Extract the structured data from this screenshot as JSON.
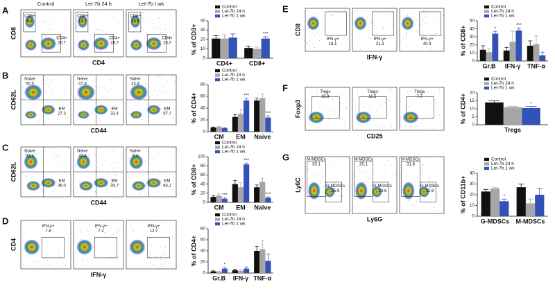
{
  "column_headers": [
    "Control",
    "Let-7b 24 h",
    "Let-7b I wk"
  ],
  "flow_panels": [
    {
      "label": "A",
      "y_label": "CD8",
      "x_label": "CD4",
      "plots": [
        {
          "gates": [
            {
              "name": "CD8+",
              "value": "9.1"
            },
            {
              "name": "CD4+",
              "value": "20.7"
            }
          ]
        },
        {
          "gates": [
            {
              "name": "CD8+",
              "value": "12.7"
            },
            {
              "name": "CD4+",
              "value": "28.7"
            }
          ]
        },
        {
          "gates": [
            {
              "name": "CD8+",
              "value": "20.6"
            },
            {
              "name": "CD4+",
              "value": "25.7"
            }
          ]
        }
      ]
    },
    {
      "label": "B",
      "y_label": "CD62L",
      "x_label": "CD44",
      "plots": [
        {
          "gates": [
            {
              "name": "Naive",
              "value": "55.5"
            },
            {
              "name": "EM",
              "value": "27.3"
            }
          ]
        },
        {
          "gates": [
            {
              "name": "Naive",
              "value": "47.8"
            },
            {
              "name": "EM",
              "value": "32.4"
            }
          ]
        },
        {
          "gates": [
            {
              "name": "Naive",
              "value": "24.4"
            },
            {
              "name": "EM",
              "value": "57.7"
            }
          ]
        }
      ]
    },
    {
      "label": "C",
      "y_label": "CD62L",
      "x_label": "CD44",
      "plots": [
        {
          "gates": [
            {
              "name": "Naive",
              "value": "33.4"
            },
            {
              "name": "EM",
              "value": "36.0"
            }
          ]
        },
        {
          "gates": [
            {
              "name": "Naive",
              "value": "42.4"
            },
            {
              "name": "EM",
              "value": "34.7"
            }
          ]
        },
        {
          "gates": [
            {
              "name": "Naive",
              "value": "8.4"
            },
            {
              "name": "EM",
              "value": "83.1"
            }
          ]
        }
      ]
    },
    {
      "label": "D",
      "y_label": "CD4",
      "x_label": "IFN-γ",
      "plots": [
        {
          "gates": [
            {
              "name": "IFN-γ+",
              "value": "7.8"
            }
          ]
        },
        {
          "gates": [
            {
              "name": "IFN-γ+",
              "value": "7.2"
            }
          ]
        },
        {
          "gates": [
            {
              "name": "IFN-γ+",
              "value": "12.7"
            }
          ]
        }
      ]
    },
    {
      "label": "E",
      "y_label": "CD8",
      "x_label": "IFN-γ",
      "plots": [
        {
          "gates": [
            {
              "name": "IFN-γ+",
              "value": "16.1"
            }
          ]
        },
        {
          "gates": [
            {
              "name": "IFN-γ+",
              "value": "21.3"
            }
          ]
        },
        {
          "gates": [
            {
              "name": "IFN-γ+",
              "value": "40.4"
            }
          ]
        }
      ]
    },
    {
      "label": "F",
      "y_label": "Foxp3",
      "x_label": "CD25",
      "plots": [
        {
          "gates": [
            {
              "name": "Tregs",
              "value": "15.9"
            }
          ]
        },
        {
          "gates": [
            {
              "name": "Tregs",
              "value": "11.5"
            }
          ]
        },
        {
          "gates": [
            {
              "name": "Tregs",
              "value": "7.7"
            }
          ]
        }
      ]
    },
    {
      "label": "G",
      "y_label": "Ly6C",
      "x_label": "Ly6G",
      "plots": [
        {
          "gates": [
            {
              "name": "M-MDSCs",
              "value": "33.1"
            },
            {
              "name": "G-MDSCs",
              "value": "25.9"
            }
          ]
        },
        {
          "gates": [
            {
              "name": "M-MDSCs",
              "value": "20.1"
            },
            {
              "name": "G-MDSCs",
              "value": "24.6"
            }
          ]
        },
        {
          "gates": [
            {
              "name": "M-MDSCs",
              "value": "31.8"
            },
            {
              "name": "G-MDSCs",
              "value": "12.6"
            }
          ]
        }
      ]
    }
  ],
  "chart_data": [
    {
      "type": "bar",
      "y_label": "% of CD3+",
      "categories": [
        "CD4+",
        "CD8+"
      ],
      "ylim": [
        0,
        40
      ],
      "yticks": [
        0,
        10,
        20,
        30,
        40
      ],
      "series": [
        {
          "name": "Control",
          "color": "#111111",
          "values": [
            21,
            11
          ],
          "errors": [
            3,
            2
          ],
          "significance": [
            null,
            null
          ]
        },
        {
          "name": "Let-7b 24 h",
          "color": "#a6a6a6",
          "values": [
            21,
            10
          ],
          "errors": [
            4,
            2
          ],
          "significance": [
            null,
            null
          ]
        },
        {
          "name": "Let-7b 1 wk",
          "color": "#3352b8",
          "values": [
            22,
            21
          ],
          "errors": [
            4,
            2
          ],
          "significance": [
            null,
            "***"
          ]
        }
      ]
    },
    {
      "type": "bar",
      "y_label": "% of CD4+",
      "categories": [
        "CM",
        "EM",
        "Naive"
      ],
      "ylim": [
        0,
        80
      ],
      "yticks": [
        0,
        20,
        40,
        60,
        80
      ],
      "series": [
        {
          "name": "Control",
          "color": "#111111",
          "values": [
            7,
            25,
            53
          ],
          "errors": [
            1,
            4,
            4
          ],
          "significance": [
            null,
            null,
            null
          ]
        },
        {
          "name": "Let-7b 24 h",
          "color": "#a6a6a6",
          "values": [
            8,
            30,
            57
          ],
          "errors": [
            1,
            8,
            7
          ],
          "significance": [
            null,
            null,
            null
          ]
        },
        {
          "name": "Let-7b 1 wk",
          "color": "#3352b8",
          "values": [
            6,
            53,
            24
          ],
          "errors": [
            1,
            4,
            3
          ],
          "significance": [
            null,
            "***",
            "***"
          ]
        }
      ]
    },
    {
      "type": "bar",
      "y_label": "% of CD8+",
      "categories": [
        "CM",
        "EM",
        "Naive"
      ],
      "ylim": [
        0,
        100
      ],
      "yticks": [
        0,
        20,
        40,
        60,
        80,
        100
      ],
      "series": [
        {
          "name": "Control",
          "color": "#111111",
          "values": [
            12,
            40,
            33
          ],
          "errors": [
            3,
            8,
            5
          ],
          "significance": [
            null,
            null,
            null
          ]
        },
        {
          "name": "Let-7b 24 h",
          "color": "#a6a6a6",
          "values": [
            15,
            33,
            45
          ],
          "errors": [
            4,
            10,
            8
          ],
          "significance": [
            null,
            null,
            null
          ]
        },
        {
          "name": "Let-7b 1 wk",
          "color": "#3352b8",
          "values": [
            8,
            83,
            10
          ],
          "errors": [
            2,
            3,
            2
          ],
          "significance": [
            "***",
            "***",
            "***"
          ]
        }
      ]
    },
    {
      "type": "bar",
      "y_label": "% of CD4+",
      "categories": [
        "Gr.B",
        "IFN-γ",
        "TNF-α"
      ],
      "ylim": [
        0,
        80
      ],
      "yticks": [
        0,
        20,
        40,
        60,
        80
      ],
      "series": [
        {
          "name": "Control",
          "color": "#111111",
          "values": [
            3,
            5,
            40
          ],
          "errors": [
            1,
            2,
            8
          ],
          "significance": [
            null,
            null,
            null
          ]
        },
        {
          "name": "Let-7b 24 h",
          "color": "#a6a6a6",
          "values": [
            2,
            4,
            43
          ],
          "errors": [
            1,
            2,
            15
          ],
          "significance": [
            null,
            null,
            null
          ]
        },
        {
          "name": "Let-7b 1 wk",
          "color": "#3352b8",
          "values": [
            8,
            8,
            22
          ],
          "errors": [
            2,
            3,
            12
          ],
          "significance": [
            "*",
            null,
            null
          ]
        }
      ]
    },
    {
      "type": "bar",
      "y_label": "% of CD8+",
      "categories": [
        "Gr.B",
        "IFN-γ",
        "TNF-α"
      ],
      "ylim": [
        0,
        50
      ],
      "yticks": [
        0,
        10,
        20,
        30,
        40,
        50
      ],
      "series": [
        {
          "name": "Control",
          "color": "#111111",
          "values": [
            14,
            13,
            19
          ],
          "errors": [
            5,
            4,
            6
          ],
          "significance": [
            null,
            null,
            null
          ]
        },
        {
          "name": "Let-7b 24 h",
          "color": "#a6a6a6",
          "values": [
            11,
            24,
            21
          ],
          "errors": [
            4,
            13,
            10
          ],
          "significance": [
            null,
            null,
            null
          ]
        },
        {
          "name": "Let-7b 1 wk",
          "color": "#3352b8",
          "values": [
            34,
            38,
            7
          ],
          "errors": [
            3,
            3,
            4
          ],
          "significance": [
            "*",
            "***",
            null
          ]
        }
      ]
    },
    {
      "type": "bar",
      "y_label": "% of CD4+",
      "categories": [
        "Tregs"
      ],
      "ylim": [
        0,
        20
      ],
      "yticks": [
        0,
        5,
        10,
        15,
        20
      ],
      "series": [
        {
          "name": "Control",
          "color": "#111111",
          "values": [
            14
          ],
          "errors": [
            1
          ],
          "significance": [
            null
          ]
        },
        {
          "name": "Let-7b 24 h",
          "color": "#a6a6a6",
          "values": [
            11
          ],
          "errors": [
            0.5
          ],
          "significance": [
            null
          ]
        },
        {
          "name": "Let-7b 1 wk",
          "color": "#3352b8",
          "values": [
            10.5
          ],
          "errors": [
            1
          ],
          "significance": [
            "*"
          ]
        }
      ]
    },
    {
      "type": "bar",
      "y_label": "% of CD11b+",
      "categories": [
        "G-MDSCs",
        "M-MDSCs"
      ],
      "ylim": [
        0,
        40
      ],
      "yticks": [
        0,
        10,
        20,
        30,
        40
      ],
      "series": [
        {
          "name": "Control",
          "color": "#111111",
          "values": [
            23,
            27
          ],
          "errors": [
            2,
            3
          ],
          "significance": [
            null,
            null
          ]
        },
        {
          "name": "Let-7b 24 h",
          "color": "#a6a6a6",
          "values": [
            26,
            12
          ],
          "errors": [
            1,
            4
          ],
          "significance": [
            null,
            null
          ]
        },
        {
          "name": "Let-7b 1 wk",
          "color": "#3352b8",
          "values": [
            14,
            20
          ],
          "errors": [
            2,
            6
          ],
          "significance": [
            "*",
            null
          ]
        }
      ]
    }
  ]
}
